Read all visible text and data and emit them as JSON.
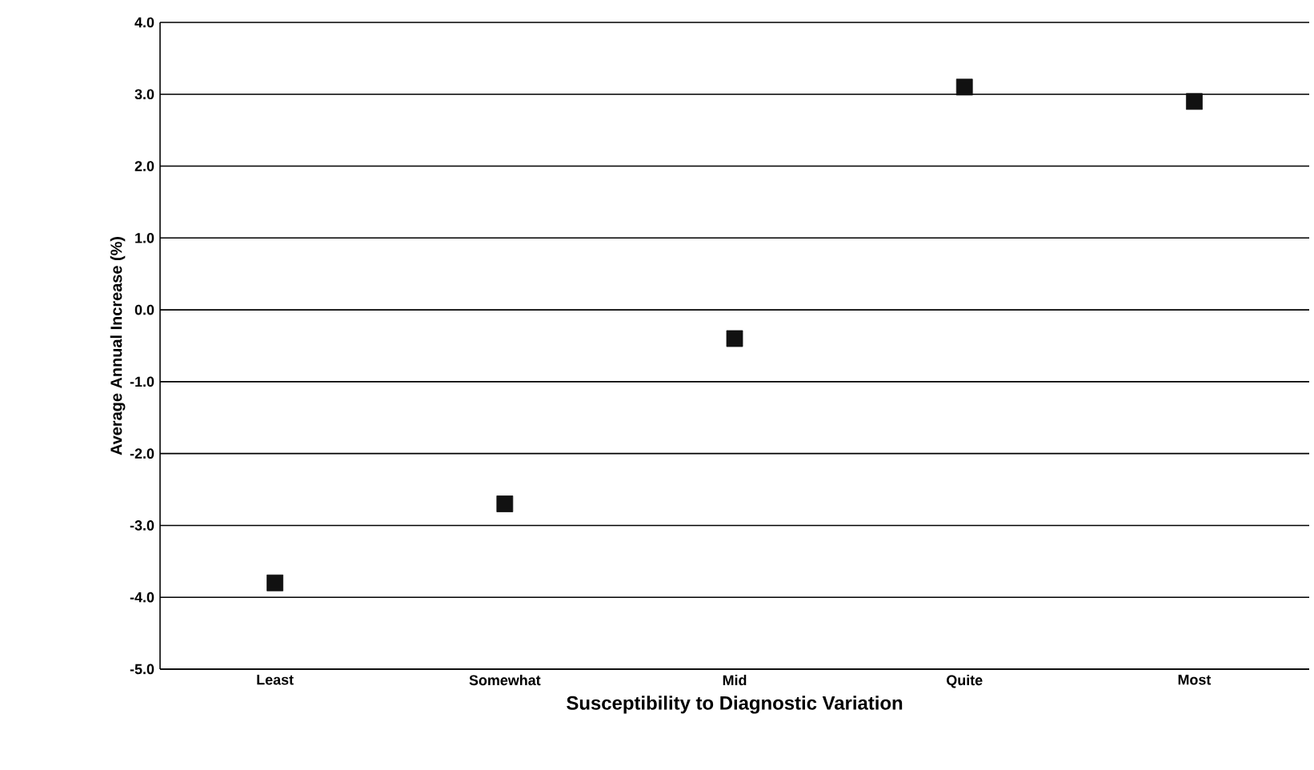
{
  "chart_data": {
    "type": "scatter",
    "xlabel": "Susceptibility to Diagnostic Variation",
    "ylabel": "Average Annual Increase (%)",
    "categories": [
      "Least",
      "Somewhat",
      "Mid",
      "Quite",
      "Most"
    ],
    "series": [
      {
        "color": "#111111",
        "values": [
          -3.8,
          -2.7,
          -0.4,
          3.1,
          2.9
        ]
      }
    ],
    "ylim": [
      -5.0,
      4.0
    ],
    "yticks": [
      {
        "value": -5,
        "label": "-5.0"
      },
      {
        "value": -4,
        "label": "-4.0"
      },
      {
        "value": -3,
        "label": "-3.0"
      },
      {
        "value": -2,
        "label": "-2.0"
      },
      {
        "value": -1,
        "label": "-1.0"
      },
      {
        "value": 0,
        "label": "0.0"
      },
      {
        "value": 1,
        "label": "1.0"
      },
      {
        "value": 2,
        "label": "2.0"
      },
      {
        "value": 3,
        "label": "3.0"
      },
      {
        "value": 4,
        "label": "4.0"
      }
    ],
    "grid": "y",
    "marker": "square"
  }
}
